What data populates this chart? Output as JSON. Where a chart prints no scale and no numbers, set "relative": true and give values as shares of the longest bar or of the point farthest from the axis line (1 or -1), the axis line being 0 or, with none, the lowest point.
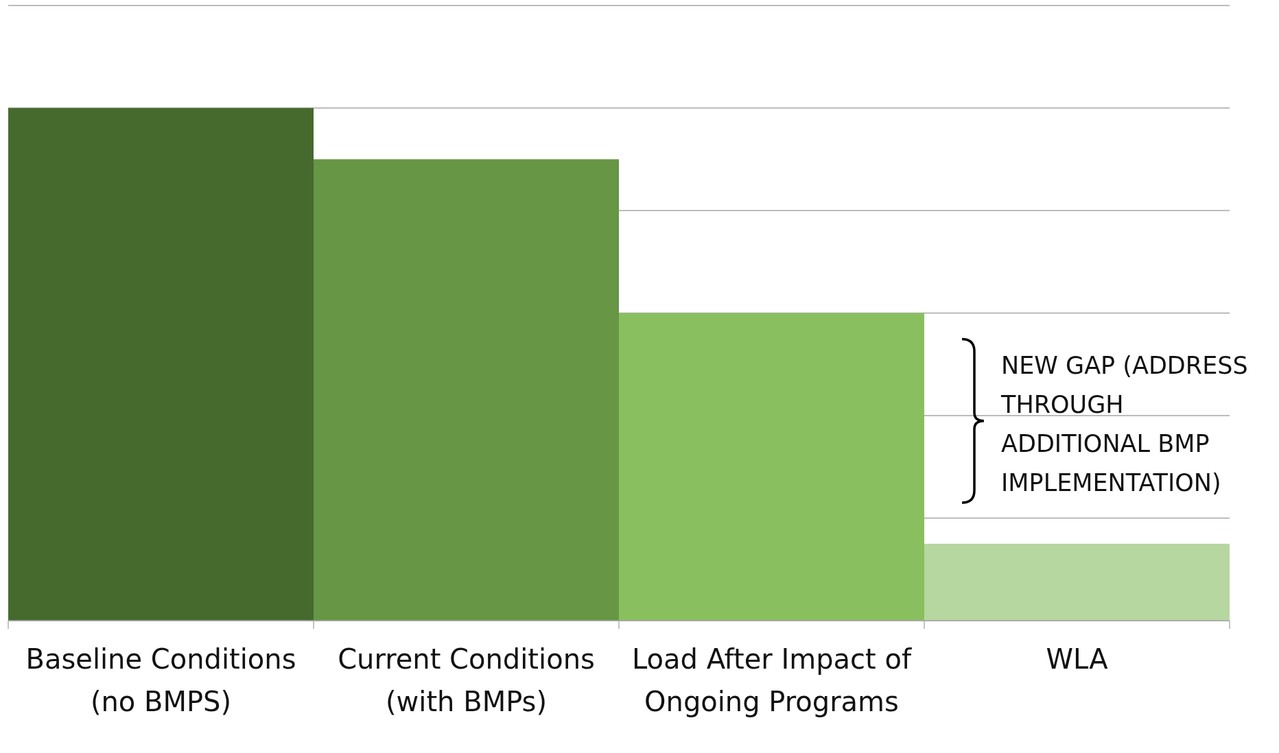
{
  "chart_data": {
    "type": "bar",
    "relative": true,
    "categories": [
      "Baseline Conditions (no BMPS)",
      "Current Conditions (with BMPs)",
      "Load After Impact of Ongoing Programs",
      "WLA"
    ],
    "values": [
      1,
      0.9,
      0.6,
      0.15
    ],
    "colors": [
      "#466a2e",
      "#679645",
      "#89bf5f",
      "#b6d7a0"
    ],
    "grid": "y",
    "annotations": [
      "NEW GAP (ADDRESS THROUGH ADDITIONAL BMP IMPLEMENTATION)"
    ]
  }
}
